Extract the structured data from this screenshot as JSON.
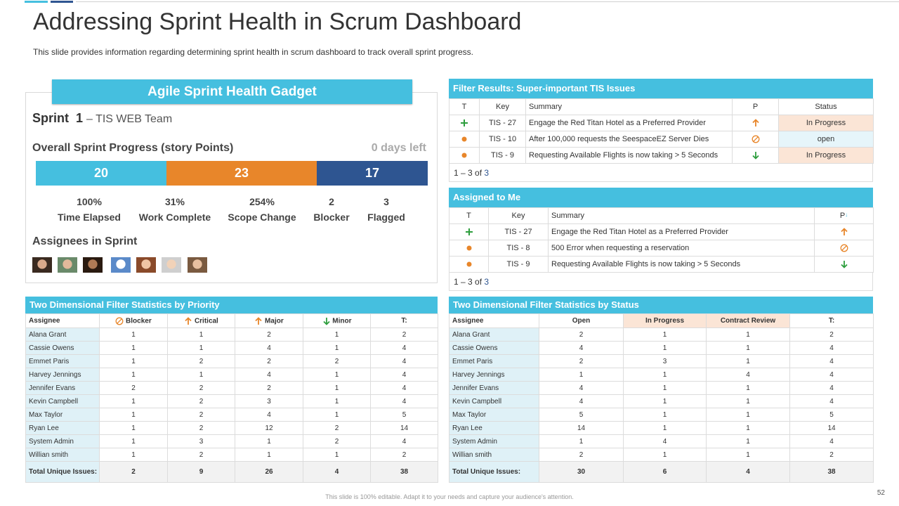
{
  "header": {
    "title": "Addressing Sprint Health in Scrum Dashboard",
    "subtitle": "This slide provides information regarding determining sprint health in scrum dashboard to track overall sprint progress."
  },
  "gadget": {
    "title": "Agile Sprint Health Gadget",
    "sprint": "Sprint  1",
    "team": "– TIS WEB Team",
    "progress_label": "Overall Sprint Progress (story Points)",
    "days_left": "0 days left",
    "progress": [
      {
        "value": 20,
        "color": "#45bfdf"
      },
      {
        "value": 23,
        "color": "#e8862a"
      },
      {
        "value": 17,
        "color": "#2e5591"
      }
    ],
    "stats": [
      {
        "value": "100%",
        "label": "Time Elapsed"
      },
      {
        "value": "31%",
        "label": "Work Complete"
      },
      {
        "value": "254%",
        "label": "Scope Change"
      },
      {
        "value": "2",
        "label": "Blocker"
      },
      {
        "value": "3",
        "label": "Flagged"
      }
    ],
    "assignees_label": "Assignees in Sprint"
  },
  "filter_results": {
    "title": "Filter Results: Super-important TIS Issues",
    "columns": [
      "T",
      "Key",
      "Summary",
      "P",
      "Status"
    ],
    "rows": [
      [
        "TIS - 27",
        "Engage the Red Titan Hotel as a Preferred Provider",
        "In Progress"
      ],
      [
        "TIS - 10",
        "After 100,000 requests the SeespaceEZ Server Dies",
        "open"
      ],
      [
        "TIS - 9",
        "Requesting Available Flights is now taking > 5 Seconds",
        "In Progress"
      ]
    ],
    "footer": "1 – 3 of",
    "footer_count": "3"
  },
  "assigned": {
    "title": "Assigned to Me",
    "columns": [
      "T",
      "Key",
      "Summary",
      "P"
    ],
    "rows": [
      [
        "TIS - 27",
        "Engage the Red Titan Hotel as a Preferred Provider"
      ],
      [
        "TIS - 8",
        "500 Error when requesting a reservation"
      ],
      [
        "TIS - 9",
        "Requesting Available Flights is now taking > 5 Seconds"
      ]
    ],
    "footer": "1 – 3 of",
    "footer_count": "3"
  },
  "priority_table": {
    "title": "Two Dimensional Filter Statistics by Priority",
    "columns": [
      "Assignee",
      "Blocker",
      "Critical",
      "Major",
      "Minor",
      "T:"
    ],
    "rows": [
      [
        "Alana Grant",
        1,
        1,
        2,
        1,
        2
      ],
      [
        "Cassie Owens",
        1,
        1,
        4,
        1,
        4
      ],
      [
        "Emmet Paris",
        1,
        2,
        2,
        2,
        4
      ],
      [
        "Harvey Jennings",
        1,
        1,
        4,
        1,
        4
      ],
      [
        "Jennifer Evans",
        2,
        2,
        2,
        1,
        4
      ],
      [
        "Kevin Campbell",
        1,
        2,
        3,
        1,
        4
      ],
      [
        "Max Taylor",
        1,
        2,
        4,
        1,
        5
      ],
      [
        "Ryan Lee",
        1,
        2,
        12,
        2,
        14
      ],
      [
        "System Admin",
        1,
        3,
        1,
        2,
        4
      ],
      [
        "Willian smith",
        1,
        2,
        1,
        1,
        2
      ]
    ],
    "total": [
      "Total Unique Issues:",
      2,
      9,
      26,
      4,
      38
    ]
  },
  "status_table": {
    "title": "Two Dimensional Filter Statistics by Status",
    "columns": [
      "Assignee",
      "Open",
      "In Progress",
      "Contract Review",
      "T:"
    ],
    "rows": [
      [
        "Alana Grant",
        2,
        1,
        1,
        2
      ],
      [
        "Cassie Owens",
        4,
        1,
        1,
        4
      ],
      [
        "Emmet Paris",
        2,
        3,
        1,
        4
      ],
      [
        "Harvey Jennings",
        1,
        1,
        4,
        4
      ],
      [
        "Jennifer Evans",
        4,
        1,
        1,
        4
      ],
      [
        "Kevin Campbell",
        4,
        1,
        1,
        4
      ],
      [
        "Max Taylor",
        5,
        1,
        1,
        5
      ],
      [
        "Ryan Lee",
        14,
        1,
        1,
        14
      ],
      [
        "System Admin",
        1,
        4,
        1,
        4
      ],
      [
        "Willian smith",
        2,
        1,
        1,
        2
      ]
    ],
    "total": [
      "Total Unique Issues:",
      30,
      6,
      4,
      38
    ]
  },
  "footer": {
    "note": "This slide is 100% editable. Adapt it to your needs and capture your audience's attention.",
    "page": "52"
  }
}
